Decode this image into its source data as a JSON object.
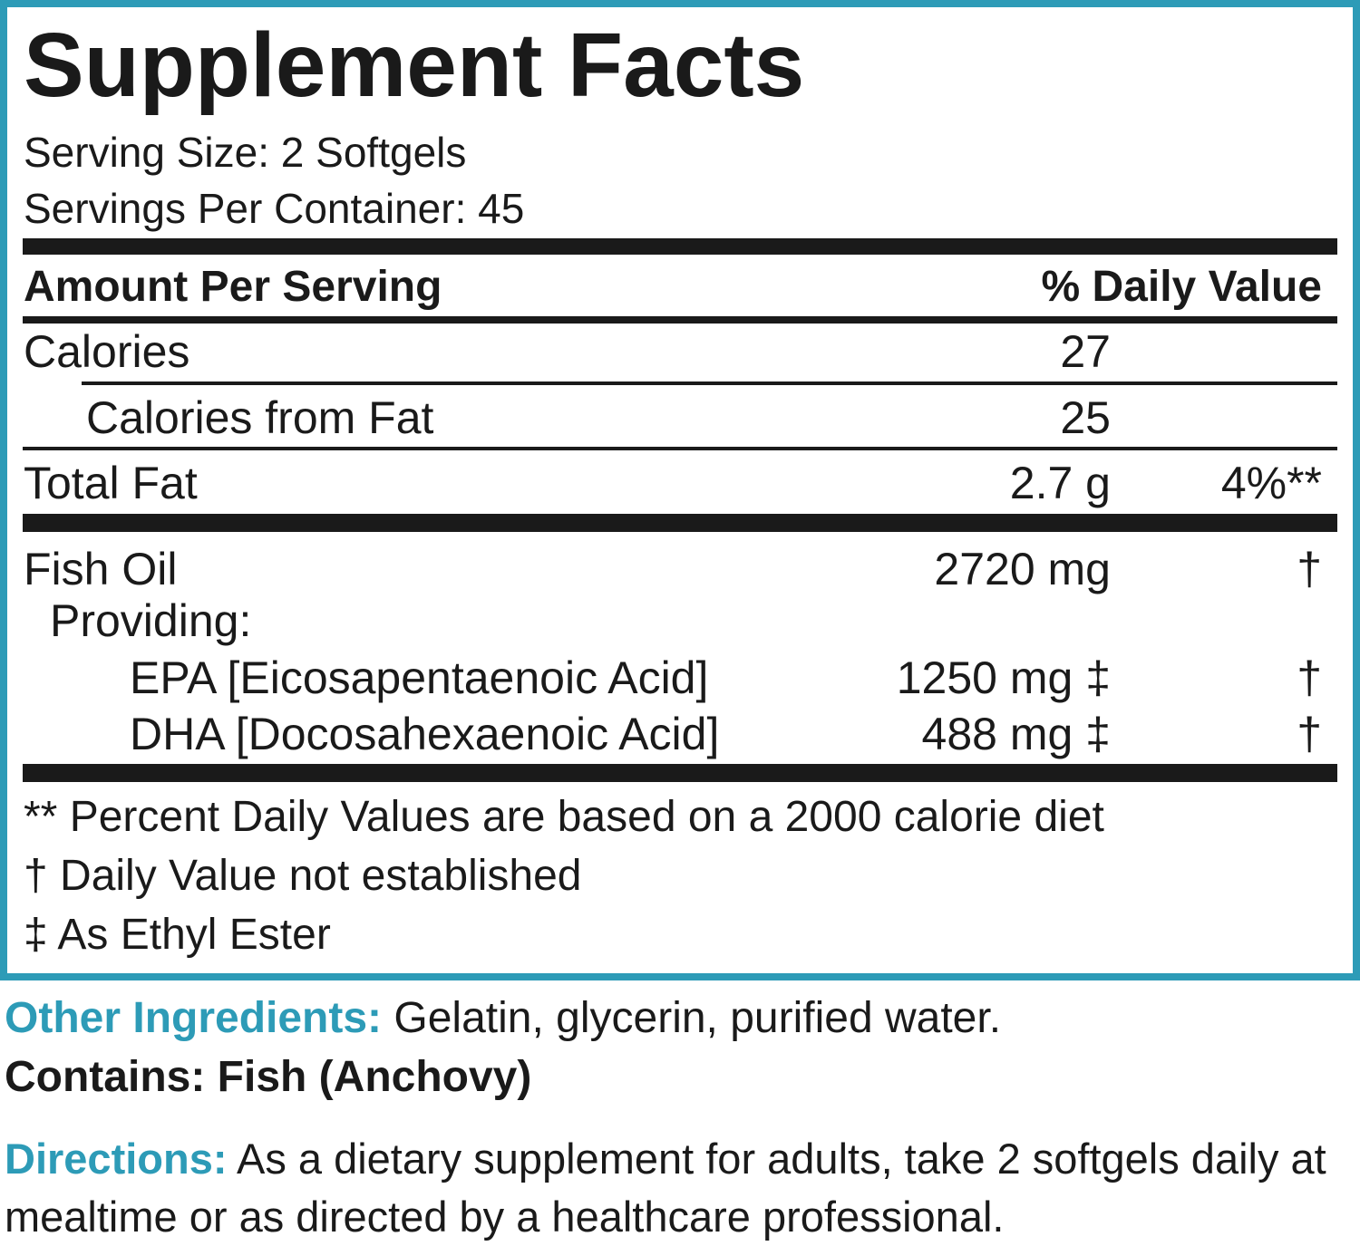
{
  "header": {
    "title": "Supplement Facts",
    "serving_size": "Serving Size: 2 Softgels",
    "servings_per_container": "Servings Per Container: 45"
  },
  "table": {
    "header": {
      "amount": "Amount Per Serving",
      "daily_value": "% Daily Value"
    },
    "rows": [
      {
        "name": "Calories",
        "amount": "27"
      },
      {
        "name": "Calories from Fat",
        "amount": "25"
      },
      {
        "name": "Total Fat",
        "amount": "2.7 g",
        "daily_value": "4%**"
      },
      {
        "name": "Fish Oil",
        "amount": "2720 mg",
        "daily_value": "†"
      },
      {
        "name": "Providing:"
      },
      {
        "name": "EPA [Eicosapentaenoic Acid]",
        "amount": "1250 mg ‡",
        "daily_value": "†"
      },
      {
        "name": "DHA [Docosahexaenoic Acid]",
        "amount": "488 mg ‡",
        "daily_value": "†"
      }
    ]
  },
  "footnotes": [
    "** Percent Daily Values are based on a 2000 calorie diet",
    "† Daily Value not established",
    "‡ As Ethyl Ester"
  ],
  "other_ingredients": {
    "label": "Other Ingredients:",
    "text": "Gelatin, glycerin, purified water."
  },
  "contains": "Contains: Fish (Anchovy)",
  "directions": {
    "label": "Directions:",
    "text": "As a dietary supplement for adults, take 2 softgels daily at mealtime or as directed by a healthcare professional."
  }
}
